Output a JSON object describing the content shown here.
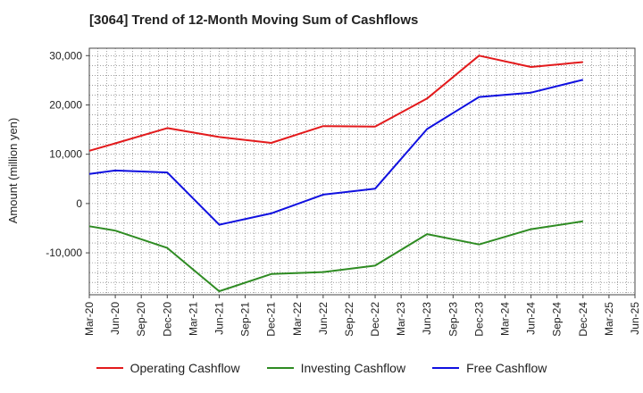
{
  "title": "[3064]  Trend of 12-Month Moving Sum of Cashflows",
  "chart_data": {
    "type": "line",
    "title": "[3064]  Trend of 12-Month Moving Sum of Cashflows",
    "xlabel": "",
    "ylabel": "Amount (million yen)",
    "ylim": [
      -18500,
      31500
    ],
    "yticks": [
      30000,
      20000,
      10000,
      0,
      -10000
    ],
    "ytick_labels": [
      "30,000",
      "20,000",
      "10,000",
      "0",
      "-10,000"
    ],
    "categories": [
      "Mar-20",
      "Jun-20",
      "Sep-20",
      "Dec-20",
      "Mar-21",
      "Jun-21",
      "Sep-21",
      "Dec-21",
      "Mar-22",
      "Jun-22",
      "Sep-22",
      "Dec-22",
      "Mar-23",
      "Jun-23",
      "Sep-23",
      "Dec-23",
      "Mar-24",
      "Jun-24",
      "Sep-24",
      "Dec-24",
      "Mar-25",
      "Jun-25"
    ],
    "grid": true,
    "legend_position": "bottom",
    "series": [
      {
        "name": "Operating Cashflow",
        "color": "#e31a1c",
        "values": [
          10700,
          12200,
          null,
          15300,
          null,
          13500,
          null,
          12300,
          null,
          15700,
          null,
          15600,
          null,
          21300,
          null,
          30000,
          null,
          27700,
          null,
          28700,
          null,
          null
        ]
      },
      {
        "name": "Investing Cashflow",
        "color": "#2e8b22",
        "values": [
          -4600,
          -5500,
          null,
          -9000,
          null,
          -17800,
          null,
          -14300,
          null,
          -13900,
          null,
          -12600,
          null,
          -6200,
          null,
          -8300,
          null,
          -5200,
          null,
          -3600,
          null,
          null
        ]
      },
      {
        "name": "Free Cashflow",
        "color": "#1010e0",
        "values": [
          6000,
          6700,
          null,
          6300,
          null,
          -4300,
          null,
          -2000,
          null,
          1800,
          null,
          3000,
          null,
          15100,
          null,
          21600,
          null,
          22500,
          null,
          25100,
          null,
          null
        ]
      }
    ]
  }
}
